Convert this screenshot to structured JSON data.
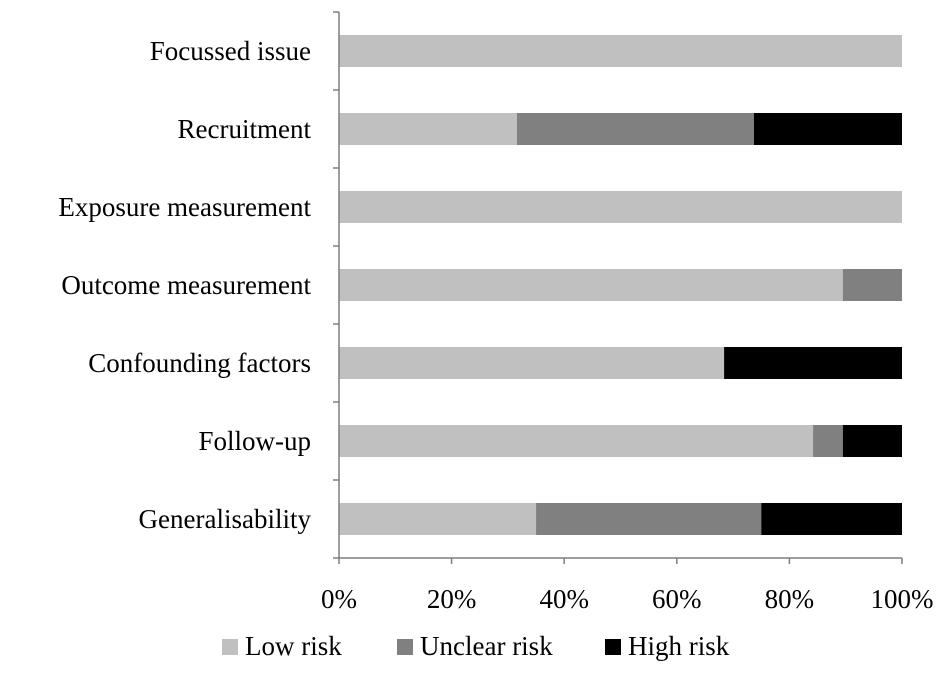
{
  "chart_data": {
    "type": "bar",
    "orientation": "horizontal",
    "stacked": true,
    "title": "",
    "xlabel": "",
    "ylabel": "",
    "xlim": [
      0,
      100
    ],
    "grid": false,
    "legend_position": "bottom",
    "categories": [
      "Focussed issue",
      "Recruitment",
      "Exposure measurement",
      "Outcome measurement",
      "Confounding factors",
      "Follow-up",
      "Generalisability"
    ],
    "x_ticks": [
      "0%",
      "20%",
      "40%",
      "60%",
      "80%",
      "100%"
    ],
    "series": [
      {
        "name": "Low risk",
        "color": "#c0c0c0",
        "values": [
          100,
          31.6,
          100,
          89.5,
          68.4,
          84.2,
          35
        ]
      },
      {
        "name": "Unclear risk",
        "color": "#808080",
        "values": [
          0,
          42.1,
          0,
          10.5,
          0,
          5.3,
          40
        ]
      },
      {
        "name": "High risk",
        "color": "#000000",
        "values": [
          0,
          26.3,
          0,
          0,
          31.6,
          10.5,
          25
        ]
      }
    ]
  }
}
